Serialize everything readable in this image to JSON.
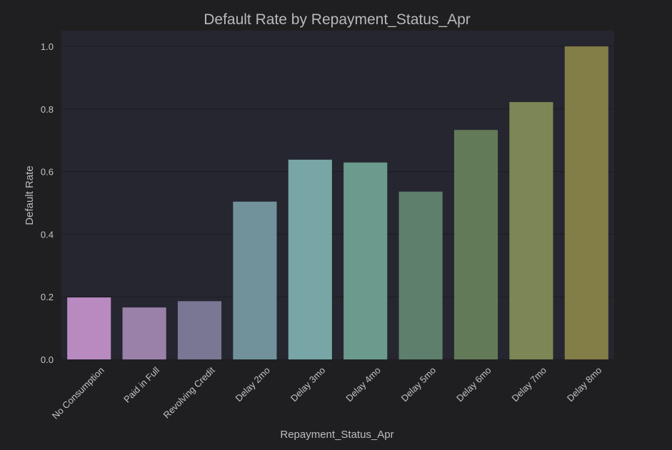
{
  "chart_data": {
    "type": "bar",
    "title": "Default Rate by Repayment_Status_Apr",
    "xlabel": "Repayment_Status_Apr",
    "ylabel": "Default Rate",
    "ylim": [
      0,
      1.05
    ],
    "yticks": [
      "0.0",
      "0.2",
      "0.4",
      "0.6",
      "0.8",
      "1.0"
    ],
    "grid": true,
    "categories": [
      "No Consumption",
      "Paid in Full",
      "Revolving Credit",
      "Delay 2mo",
      "Delay 3mo",
      "Delay 4mo",
      "Delay 5mo",
      "Delay 6mo",
      "Delay 7mo",
      "Delay 8mo"
    ],
    "values": [
      0.198,
      0.166,
      0.186,
      0.504,
      0.638,
      0.629,
      0.536,
      0.733,
      0.822,
      1.0
    ],
    "colors": [
      "#b88ac0",
      "#9a81a9",
      "#7a7794",
      "#72929b",
      "#78a5a5",
      "#6b9b8c",
      "#5e7f6b",
      "#637a58",
      "#7c8755",
      "#837d48"
    ],
    "background": "#1f1f21",
    "plot_background": "#262630",
    "grid_color": "#1c1c22"
  }
}
